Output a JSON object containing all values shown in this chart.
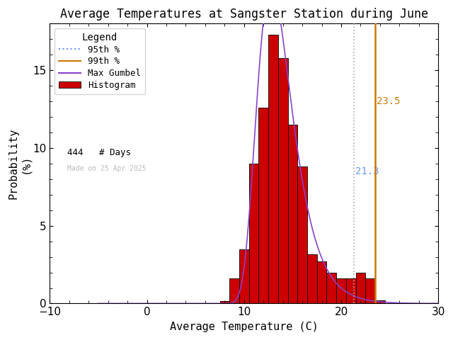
{
  "title": "Average Temperatures at Sangster Station during June",
  "xlabel": "Average Temperature (C)",
  "ylabel": "Probability\n(%)",
  "xlim": [
    -10,
    30
  ],
  "ylim": [
    0,
    18
  ],
  "yticks": [
    0,
    5,
    10,
    15
  ],
  "xticks": [
    -10,
    0,
    10,
    20,
    30
  ],
  "bar_color": "#cc0000",
  "bar_edge_color": "#000000",
  "p95_value": 21.3,
  "p99_value": 23.5,
  "p95_color": "#aaaaaa",
  "p95_label_color": "#6699ff",
  "p99_color": "#cc7700",
  "p99_label_color": "#cc7700",
  "p95_label": "95th %",
  "p99_label": "99th %",
  "gumbel_color": "#8844cc",
  "n_days": 444,
  "made_on": "Made on 25 Apr 2025",
  "legend_title": "Legend",
  "bin_width": 1.0,
  "bin_edges": [
    7.5,
    8.5,
    9.5,
    10.5,
    11.5,
    12.5,
    13.5,
    14.5,
    15.5,
    16.5,
    17.5,
    18.5,
    19.5,
    20.5,
    21.5,
    22.5,
    23.5,
    24.5
  ],
  "bin_probs": [
    0.18,
    1.6,
    3.5,
    9.0,
    12.6,
    17.3,
    15.8,
    11.5,
    8.8,
    3.15,
    2.7,
    2.0,
    1.6,
    1.6,
    2.0,
    1.6,
    0.2,
    0.0
  ],
  "background_color": "#ffffff",
  "title_fontsize": 12,
  "axis_fontsize": 11,
  "tick_fontsize": 11,
  "mu_gumbel": 12.8,
  "beta_gumbel": 1.8
}
